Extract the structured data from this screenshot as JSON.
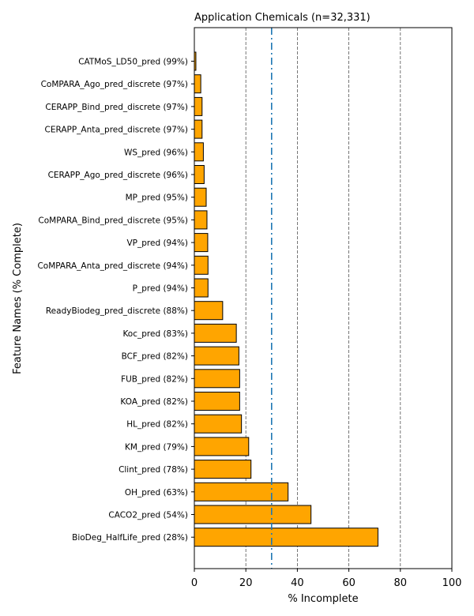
{
  "chart_data": {
    "type": "bar",
    "orientation": "horizontal",
    "title": "Application Chemicals (n=32,331)",
    "xlabel": "% Incomplete",
    "ylabel": "Feature Names (% Complete)",
    "xlim": [
      0,
      100
    ],
    "xticks": [
      0,
      20,
      40,
      60,
      80,
      100
    ],
    "grid": "vertical dashed at 20, 40, 60, 80",
    "threshold_line": 30,
    "bar_color": "#FFA500",
    "bar_edge_color": "#000000",
    "threshold_color": "#1F77B4",
    "grid_color": "#555555",
    "categories": [
      "CATMoS_LD50_pred (99%)",
      "CoMPARA_Ago_pred_discrete (97%)",
      "CERAPP_Bind_pred_discrete (97%)",
      "CERAPP_Anta_pred_discrete (97%)",
      "WS_pred (96%)",
      "CERAPP_Ago_pred_discrete (96%)",
      "MP_pred (95%)",
      "CoMPARA_Bind_pred_discrete (95%)",
      "VP_pred (94%)",
      "CoMPARA_Anta_pred_discrete (94%)",
      "P_pred (94%)",
      "ReadyBiodeg_pred_discrete (88%)",
      "Koc_pred (83%)",
      "BCF_pred (82%)",
      "FUB_pred (82%)",
      "KOA_pred (82%)",
      "HL_pred (82%)",
      "KM_pred (79%)",
      "Clint_pred (78%)",
      "OH_pred (63%)",
      "CACO2_pred (54%)",
      "BioDeg_HalfLife_pred (28%)"
    ],
    "values": [
      0.6,
      2.5,
      3.0,
      3.0,
      3.5,
      3.8,
      4.6,
      4.9,
      5.2,
      5.3,
      5.3,
      11.0,
      16.3,
      17.3,
      17.6,
      17.6,
      18.3,
      21.1,
      22.0,
      36.4,
      45.3,
      71.3
    ]
  }
}
